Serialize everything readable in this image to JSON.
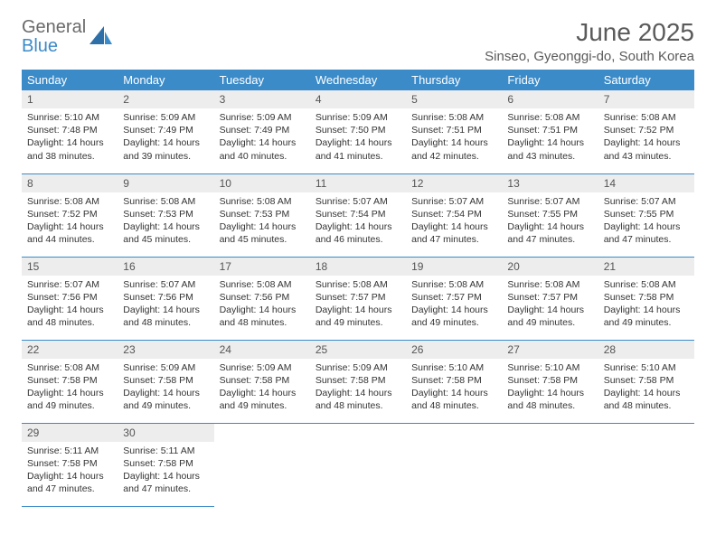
{
  "logo": {
    "text1": "General",
    "text2": "Blue"
  },
  "title": "June 2025",
  "location": "Sinseo, Gyeonggi-do, South Korea",
  "colors": {
    "header_bg": "#3b8bc9",
    "header_text": "#ffffff",
    "daynum_bg": "#ededed",
    "border": "#3b8bc9",
    "logo_gray": "#6a6a6a",
    "logo_blue": "#3b8bc9"
  },
  "weekdays": [
    "Sunday",
    "Monday",
    "Tuesday",
    "Wednesday",
    "Thursday",
    "Friday",
    "Saturday"
  ],
  "days": [
    {
      "n": "1",
      "sunrise": "5:10 AM",
      "sunset": "7:48 PM",
      "daylight": "14 hours and 38 minutes."
    },
    {
      "n": "2",
      "sunrise": "5:09 AM",
      "sunset": "7:49 PM",
      "daylight": "14 hours and 39 minutes."
    },
    {
      "n": "3",
      "sunrise": "5:09 AM",
      "sunset": "7:49 PM",
      "daylight": "14 hours and 40 minutes."
    },
    {
      "n": "4",
      "sunrise": "5:09 AM",
      "sunset": "7:50 PM",
      "daylight": "14 hours and 41 minutes."
    },
    {
      "n": "5",
      "sunrise": "5:08 AM",
      "sunset": "7:51 PM",
      "daylight": "14 hours and 42 minutes."
    },
    {
      "n": "6",
      "sunrise": "5:08 AM",
      "sunset": "7:51 PM",
      "daylight": "14 hours and 43 minutes."
    },
    {
      "n": "7",
      "sunrise": "5:08 AM",
      "sunset": "7:52 PM",
      "daylight": "14 hours and 43 minutes."
    },
    {
      "n": "8",
      "sunrise": "5:08 AM",
      "sunset": "7:52 PM",
      "daylight": "14 hours and 44 minutes."
    },
    {
      "n": "9",
      "sunrise": "5:08 AM",
      "sunset": "7:53 PM",
      "daylight": "14 hours and 45 minutes."
    },
    {
      "n": "10",
      "sunrise": "5:08 AM",
      "sunset": "7:53 PM",
      "daylight": "14 hours and 45 minutes."
    },
    {
      "n": "11",
      "sunrise": "5:07 AM",
      "sunset": "7:54 PM",
      "daylight": "14 hours and 46 minutes."
    },
    {
      "n": "12",
      "sunrise": "5:07 AM",
      "sunset": "7:54 PM",
      "daylight": "14 hours and 47 minutes."
    },
    {
      "n": "13",
      "sunrise": "5:07 AM",
      "sunset": "7:55 PM",
      "daylight": "14 hours and 47 minutes."
    },
    {
      "n": "14",
      "sunrise": "5:07 AM",
      "sunset": "7:55 PM",
      "daylight": "14 hours and 47 minutes."
    },
    {
      "n": "15",
      "sunrise": "5:07 AM",
      "sunset": "7:56 PM",
      "daylight": "14 hours and 48 minutes."
    },
    {
      "n": "16",
      "sunrise": "5:07 AM",
      "sunset": "7:56 PM",
      "daylight": "14 hours and 48 minutes."
    },
    {
      "n": "17",
      "sunrise": "5:08 AM",
      "sunset": "7:56 PM",
      "daylight": "14 hours and 48 minutes."
    },
    {
      "n": "18",
      "sunrise": "5:08 AM",
      "sunset": "7:57 PM",
      "daylight": "14 hours and 49 minutes."
    },
    {
      "n": "19",
      "sunrise": "5:08 AM",
      "sunset": "7:57 PM",
      "daylight": "14 hours and 49 minutes."
    },
    {
      "n": "20",
      "sunrise": "5:08 AM",
      "sunset": "7:57 PM",
      "daylight": "14 hours and 49 minutes."
    },
    {
      "n": "21",
      "sunrise": "5:08 AM",
      "sunset": "7:58 PM",
      "daylight": "14 hours and 49 minutes."
    },
    {
      "n": "22",
      "sunrise": "5:08 AM",
      "sunset": "7:58 PM",
      "daylight": "14 hours and 49 minutes."
    },
    {
      "n": "23",
      "sunrise": "5:09 AM",
      "sunset": "7:58 PM",
      "daylight": "14 hours and 49 minutes."
    },
    {
      "n": "24",
      "sunrise": "5:09 AM",
      "sunset": "7:58 PM",
      "daylight": "14 hours and 49 minutes."
    },
    {
      "n": "25",
      "sunrise": "5:09 AM",
      "sunset": "7:58 PM",
      "daylight": "14 hours and 48 minutes."
    },
    {
      "n": "26",
      "sunrise": "5:10 AM",
      "sunset": "7:58 PM",
      "daylight": "14 hours and 48 minutes."
    },
    {
      "n": "27",
      "sunrise": "5:10 AM",
      "sunset": "7:58 PM",
      "daylight": "14 hours and 48 minutes."
    },
    {
      "n": "28",
      "sunrise": "5:10 AM",
      "sunset": "7:58 PM",
      "daylight": "14 hours and 48 minutes."
    },
    {
      "n": "29",
      "sunrise": "5:11 AM",
      "sunset": "7:58 PM",
      "daylight": "14 hours and 47 minutes."
    },
    {
      "n": "30",
      "sunrise": "5:11 AM",
      "sunset": "7:58 PM",
      "daylight": "14 hours and 47 minutes."
    }
  ],
  "labels": {
    "sunrise": "Sunrise: ",
    "sunset": "Sunset: ",
    "daylight": "Daylight: "
  }
}
